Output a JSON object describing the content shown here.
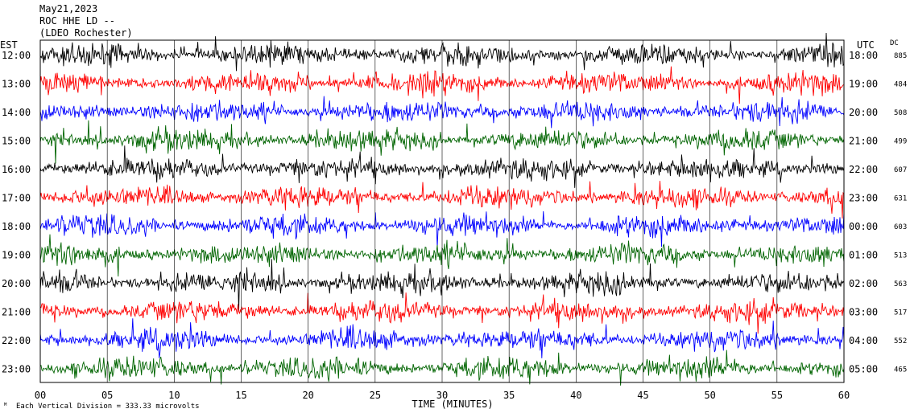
{
  "header": {
    "date": "May21,2023",
    "station": "ROC HHE LD --",
    "location": "(LDEO Rochester)"
  },
  "left_timezone": "EST",
  "right_timezone": "UTC",
  "dc_label": "DC",
  "xlabel": "TIME (MINUTES)",
  "footer_note": "Each Vertical Division =  333.33 microvolts",
  "chart_data": {
    "type": "line",
    "title": "",
    "xlabel": "TIME (MINUTES)",
    "ylabel": "",
    "xlim": [
      0,
      60
    ],
    "x_ticks": [
      "00",
      "05",
      "10",
      "15",
      "20",
      "25",
      "30",
      "35",
      "40",
      "45",
      "50",
      "55",
      "60"
    ],
    "trace_colors": [
      "#000000",
      "#ff0000",
      "#0000ff",
      "#006400"
    ],
    "rows": [
      {
        "est": "12:00",
        "utc": "18:00",
        "dc": "885"
      },
      {
        "est": "13:00",
        "utc": "19:00",
        "dc": "484"
      },
      {
        "est": "14:00",
        "utc": "20:00",
        "dc": "508"
      },
      {
        "est": "15:00",
        "utc": "21:00",
        "dc": "499"
      },
      {
        "est": "16:00",
        "utc": "22:00",
        "dc": "607"
      },
      {
        "est": "17:00",
        "utc": "23:00",
        "dc": "631"
      },
      {
        "est": "18:00",
        "utc": "00:00",
        "dc": "603"
      },
      {
        "est": "19:00",
        "utc": "01:00",
        "dc": "513"
      },
      {
        "est": "20:00",
        "utc": "02:00",
        "dc": "563"
      },
      {
        "est": "21:00",
        "utc": "03:00",
        "dc": "517"
      },
      {
        "est": "22:00",
        "utc": "04:00",
        "dc": "552"
      },
      {
        "est": "23:00",
        "utc": "05:00",
        "dc": "465"
      }
    ]
  }
}
